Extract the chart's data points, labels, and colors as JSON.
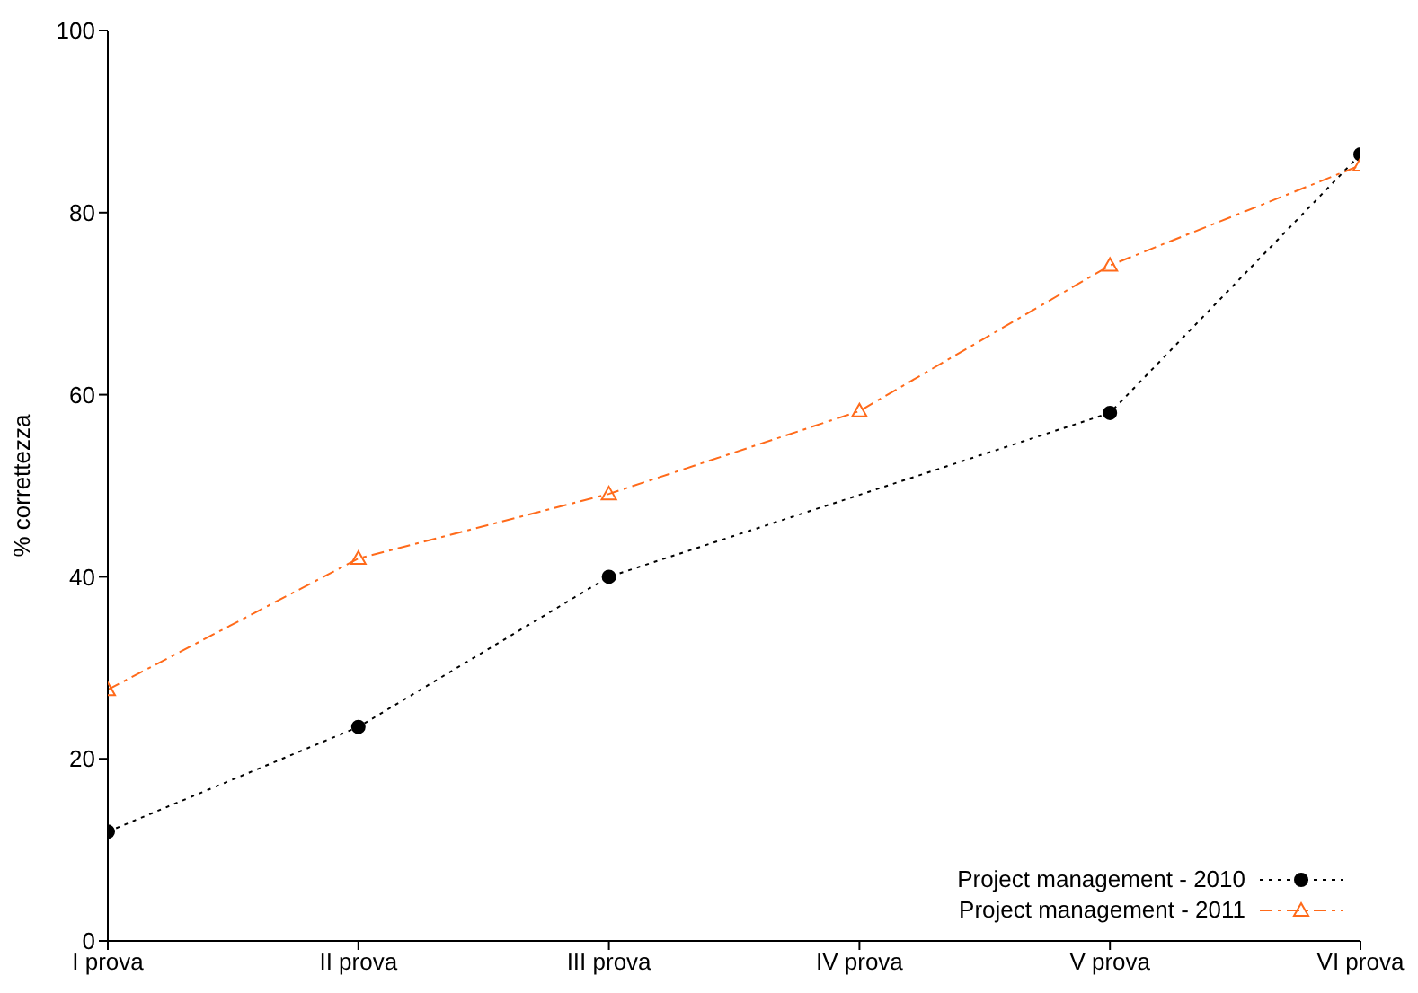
{
  "chart_data": {
    "type": "line",
    "ylabel": "% correttezza",
    "categories": [
      "I prova",
      "II prova",
      "III prova",
      "IV prova",
      "V prova",
      "VI prova"
    ],
    "ylim": [
      0,
      100
    ],
    "yticks": [
      0,
      20,
      40,
      60,
      80,
      100
    ],
    "grid": false,
    "legend": "bottom right",
    "series": [
      {
        "name": "Project management - 2010",
        "color": "#000000",
        "marker": "circle",
        "line_style": "dotted",
        "values": [
          12.0,
          23.5,
          40.0,
          null,
          58.0,
          86.4
        ]
      },
      {
        "name": "Project management - 2011",
        "color": "#ff6a1a",
        "marker": "triangle",
        "line_style": "dashed",
        "values": [
          27.6,
          42.0,
          49.1,
          58.2,
          74.2,
          85.2
        ]
      }
    ]
  }
}
